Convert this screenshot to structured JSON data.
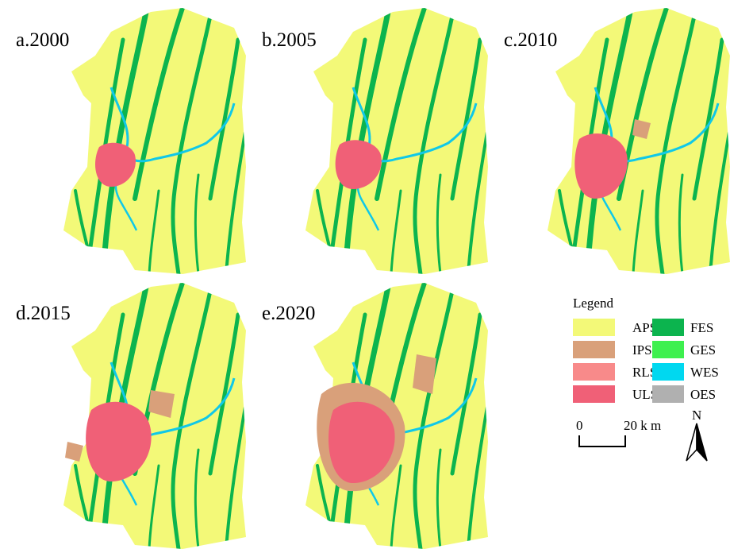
{
  "panels": [
    {
      "label": "a.2000"
    },
    {
      "label": "b.2005"
    },
    {
      "label": "c.2010"
    },
    {
      "label": "d.2015"
    },
    {
      "label": "e.2020"
    }
  ],
  "legend": {
    "title": "Legend",
    "items": [
      {
        "label": "APS",
        "color": "#f3f978"
      },
      {
        "label": "IPS",
        "color": "#d9a07a"
      },
      {
        "label": "RLS",
        "color": "#f88a8a"
      },
      {
        "label": "ULS",
        "color": "#f06077"
      },
      {
        "label": "FES",
        "color": "#0cb44e"
      },
      {
        "label": "GES",
        "color": "#3ef04f"
      },
      {
        "label": "WES",
        "color": "#00d8f0"
      },
      {
        "label": "OES",
        "color": "#b0b0b0"
      }
    ]
  },
  "scale_bar": {
    "start": "0",
    "end": "20 k m"
  },
  "north": "N"
}
